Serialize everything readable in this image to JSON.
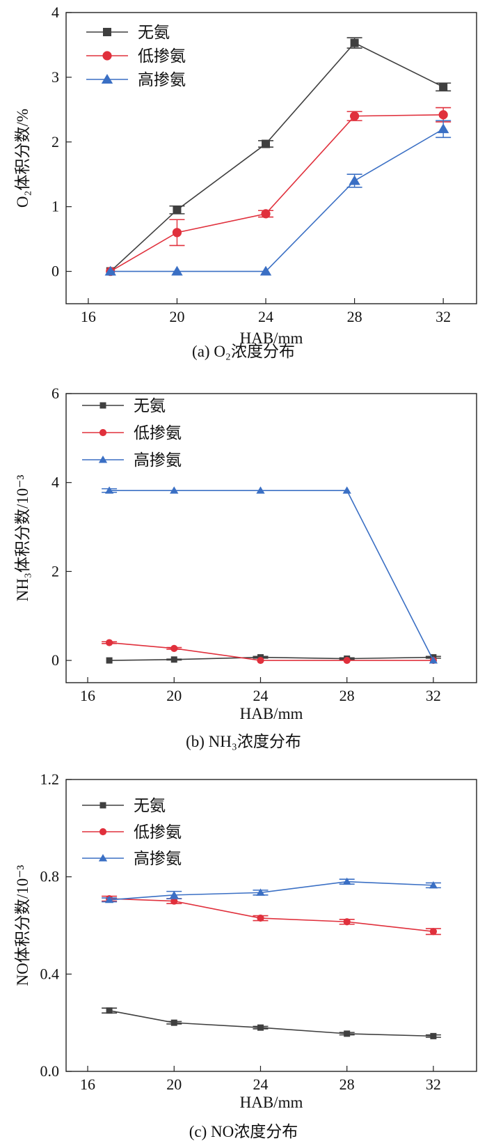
{
  "chart_data": [
    {
      "type": "line",
      "id": "o2",
      "caption": "(a) O₂浓度分布",
      "xlabel": "HAB/mm",
      "ylabel": "O₂体积分数/%",
      "x": [
        17,
        20,
        24,
        28,
        32
      ],
      "xticks": [
        16,
        20,
        24,
        28,
        32
      ],
      "xlim": [
        15,
        33.5
      ],
      "ylim": [
        -0.5,
        4
      ],
      "yticks": [
        0,
        1,
        2,
        3,
        4
      ],
      "ytick_labels": [
        "0",
        "1",
        "2",
        "3",
        "4"
      ],
      "grid": false,
      "legend": "top-left",
      "series": [
        {
          "name": "无氨",
          "marker": "square",
          "color": "#3f3f3f",
          "values": [
            0.0,
            0.95,
            1.97,
            3.53,
            2.85
          ],
          "errors": [
            0.0,
            0.06,
            0.05,
            0.08,
            0.06
          ]
        },
        {
          "name": "低掺氨",
          "marker": "circle",
          "color": "#e0303c",
          "values": [
            0.0,
            0.6,
            0.89,
            2.4,
            2.42
          ],
          "errors": [
            0.0,
            0.2,
            0.05,
            0.07,
            0.11
          ]
        },
        {
          "name": "高掺氨",
          "marker": "triangle",
          "color": "#3a6fc4",
          "values": [
            0.0,
            0.0,
            0.0,
            1.4,
            2.2
          ],
          "errors": [
            0.0,
            0.0,
            0.0,
            0.1,
            0.13
          ]
        }
      ]
    },
    {
      "type": "line",
      "id": "nh3",
      "caption": "(b) NH₃浓度分布",
      "xlabel": "HAB/mm",
      "ylabel": "NH₃体积分数/10⁻³",
      "x": [
        17,
        20,
        24,
        28,
        32
      ],
      "xticks": [
        16,
        20,
        24,
        28,
        32
      ],
      "xlim": [
        15,
        34
      ],
      "ylim": [
        -0.5,
        6
      ],
      "yticks": [
        0,
        2,
        4,
        6
      ],
      "ytick_labels": [
        "0",
        "2",
        "4",
        "6"
      ],
      "grid": false,
      "legend": "top-left",
      "series": [
        {
          "name": "无氨",
          "marker": "square",
          "color": "#3f3f3f",
          "values": [
            0.0,
            0.02,
            0.07,
            0.04,
            0.07
          ],
          "errors": [
            0.0,
            0.01,
            0.02,
            0.02,
            0.02
          ]
        },
        {
          "name": "低掺氨",
          "marker": "circle",
          "color": "#e0303c",
          "values": [
            0.4,
            0.27,
            0.0,
            0.0,
            0.0
          ],
          "errors": [
            0.02,
            0.02,
            0.0,
            0.0,
            0.0
          ]
        },
        {
          "name": "高掺氨",
          "marker": "triangle",
          "color": "#3a6fc4",
          "values": [
            3.82,
            3.82,
            3.82,
            3.82,
            0.0
          ],
          "errors": [
            0.04,
            0.0,
            0.0,
            0.0,
            0.0
          ]
        }
      ]
    },
    {
      "type": "line",
      "id": "no",
      "caption": "(c) NO浓度分布",
      "xlabel": "HAB/mm",
      "ylabel": "NO体积分数/10⁻³",
      "x": [
        17,
        20,
        24,
        28,
        32
      ],
      "xticks": [
        16,
        20,
        24,
        28,
        32
      ],
      "xlim": [
        15,
        34
      ],
      "ylim": [
        0,
        1.2
      ],
      "yticks": [
        0,
        0.4,
        0.8,
        1.2
      ],
      "ytick_labels": [
        "0.0",
        "0.4",
        "0.8",
        "1.2"
      ],
      "grid": false,
      "legend": "top-left",
      "series": [
        {
          "name": "无氨",
          "marker": "square",
          "color": "#3f3f3f",
          "values": [
            0.25,
            0.2,
            0.18,
            0.155,
            0.145
          ],
          "errors": [
            0.01,
            0.005,
            0.005,
            0.005,
            0.005
          ]
        },
        {
          "name": "低掺氨",
          "marker": "circle",
          "color": "#e0303c",
          "values": [
            0.71,
            0.7,
            0.63,
            0.615,
            0.575
          ],
          "errors": [
            0.01,
            0.01,
            0.01,
            0.01,
            0.012
          ]
        },
        {
          "name": "高掺氨",
          "marker": "triangle",
          "color": "#3a6fc4",
          "values": [
            0.705,
            0.725,
            0.735,
            0.78,
            0.765
          ],
          "errors": [
            0.008,
            0.015,
            0.01,
            0.01,
            0.01
          ]
        }
      ]
    }
  ]
}
